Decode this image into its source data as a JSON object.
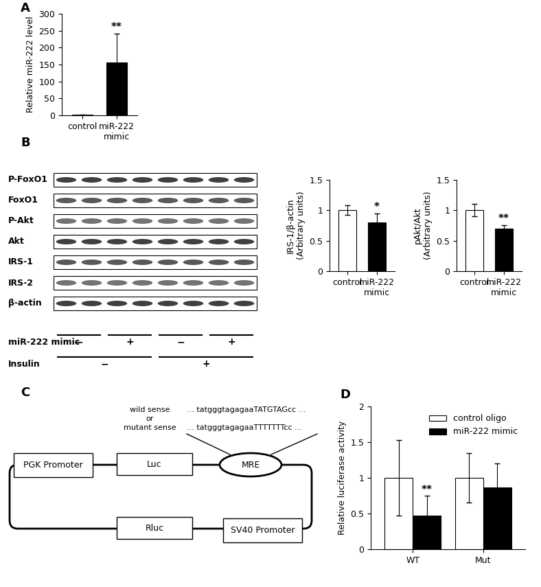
{
  "panel_labels": [
    "A",
    "B",
    "C",
    "D"
  ],
  "chart_data": [
    {
      "type": "bar",
      "categories": [
        "control",
        "miR-222 mimic"
      ],
      "values": [
        1.3,
        157
      ],
      "errors": [
        1,
        85
      ],
      "colors": [
        "#ffffff",
        "#000000"
      ],
      "ylabel": "Relative miR-222 level",
      "ylim": [
        0,
        300
      ],
      "yticks": [
        0,
        50,
        100,
        150,
        200,
        250,
        300
      ],
      "grid": false,
      "annotations": [
        {
          "text": "**",
          "category": "miR-222 mimic"
        }
      ]
    },
    {
      "type": "bar",
      "categories": [
        "control",
        "miR-222 mimic"
      ],
      "values": [
        1.0,
        0.8
      ],
      "errors": [
        0.08,
        0.15
      ],
      "colors": [
        "#ffffff",
        "#000000"
      ],
      "ylabel": "IRS-1/β-actin\n(Arbitrary units)",
      "ylim": [
        0,
        1.5
      ],
      "yticks": [
        0,
        0.5,
        1,
        1.5
      ],
      "grid": false,
      "annotations": [
        {
          "text": "*",
          "category": "miR-222 mimic"
        }
      ]
    },
    {
      "type": "bar",
      "categories": [
        "control",
        "miR-222 mimic"
      ],
      "values": [
        1.0,
        0.7
      ],
      "errors": [
        0.1,
        0.06
      ],
      "colors": [
        "#ffffff",
        "#000000"
      ],
      "ylabel": "pAkt/Akt\n(Arbitrary units)",
      "ylim": [
        0,
        1.5
      ],
      "yticks": [
        0,
        0.5,
        1,
        1.5
      ],
      "grid": false,
      "annotations": [
        {
          "text": "**",
          "category": "miR-222 mimic"
        }
      ]
    },
    {
      "type": "bar",
      "categories": [
        "WT",
        "Mut"
      ],
      "series": [
        {
          "name": "control oligo",
          "color": "#ffffff",
          "values": [
            1.0,
            1.0
          ],
          "errors": [
            0.53,
            0.35
          ]
        },
        {
          "name": "miR-222 mimic",
          "color": "#000000",
          "values": [
            0.47,
            0.87
          ],
          "errors": [
            0.28,
            0.33
          ]
        }
      ],
      "ylabel": "Relative luciferase activity",
      "ylim": [
        0,
        2
      ],
      "yticks": [
        0,
        0.5,
        1,
        1.5,
        2
      ],
      "grid": false,
      "legend": "upper right",
      "annotations": [
        {
          "text": "**",
          "category": "WT",
          "series": "miR-222 mimic"
        }
      ]
    }
  ],
  "blot": {
    "row_labels": [
      "P-FoxO1",
      "FoxO1",
      "P-Akt",
      "Akt",
      "IRS-1",
      "IRS-2",
      "β-actin"
    ],
    "treatments": [
      {
        "label": "miR-222 mimic",
        "signs": [
          "−",
          "+",
          "−",
          "+"
        ]
      },
      {
        "label": "Insulin",
        "signs": [
          "−",
          "+"
        ]
      }
    ]
  },
  "diagram": {
    "sense_labels": [
      "wild sense",
      "or",
      "mutant sense"
    ],
    "sequences": [
      "... tatgggtagagaaTATGTAGcc ...",
      "... tatgggtagagaaTTTTTTTcc ..."
    ],
    "boxes": {
      "pgk": "PGK Promoter",
      "luc": "Luc",
      "mre": "MRE",
      "rluc": "Rluc",
      "sv40": "SV40 Promoter"
    }
  }
}
